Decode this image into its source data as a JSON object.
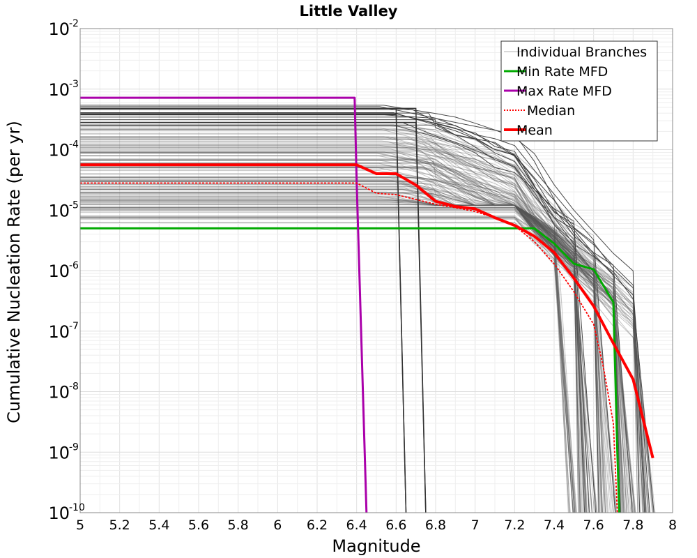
{
  "chart_data": {
    "type": "line",
    "title": "Little Valley",
    "xlabel": "Magnitude",
    "ylabel": "Cumulative Nucleation Rate (per yr)",
    "xlim": [
      5,
      8
    ],
    "ylim": [
      1e-10,
      0.01
    ],
    "yscale": "log",
    "grid": true,
    "legend_position": "top-right",
    "x_ticks": [
      "5",
      "5.2",
      "5.4",
      "5.6",
      "5.8",
      "6",
      "6.2",
      "6.4",
      "6.6",
      "6.8",
      "7",
      "7.2",
      "7.4",
      "7.6",
      "7.8",
      "8"
    ],
    "y_ticks": [
      {
        "base": "10",
        "exp": "-2"
      },
      {
        "base": "10",
        "exp": "-3"
      },
      {
        "base": "10",
        "exp": "-4"
      },
      {
        "base": "10",
        "exp": "-5"
      },
      {
        "base": "10",
        "exp": "-6"
      },
      {
        "base": "10",
        "exp": "-7"
      },
      {
        "base": "10",
        "exp": "-8"
      },
      {
        "base": "10",
        "exp": "-9"
      },
      {
        "base": "10",
        "exp": "-10"
      }
    ],
    "legend": [
      {
        "label": "Individual Branches",
        "color": "#b0b0b0",
        "style": "thin"
      },
      {
        "label": "Min Rate MFD",
        "color": "#00aa00",
        "style": "solid"
      },
      {
        "label": "Max Rate MFD",
        "color": "#aa00aa",
        "style": "solid"
      },
      {
        "label": "Median",
        "color": "#ff0000",
        "style": "dotted"
      },
      {
        "label": "Mean",
        "color": "#ff0000",
        "style": "thick"
      }
    ],
    "series": [
      {
        "name": "Min Rate MFD",
        "color": "#00aa00",
        "x": [
          5.0,
          6.4,
          6.5,
          6.6,
          6.7,
          6.8,
          6.9,
          7.0,
          7.1,
          7.2,
          7.3,
          7.4,
          7.5,
          7.6,
          7.7,
          7.72,
          7.73
        ],
        "y": [
          5e-06,
          5e-06,
          5e-06,
          5e-06,
          5e-06,
          5e-06,
          5e-06,
          5e-06,
          5e-06,
          5e-06,
          5e-06,
          2.8e-06,
          1.3e-06,
          1.05e-06,
          3e-07,
          1e-09,
          1e-10
        ]
      },
      {
        "name": "Max Rate MFD",
        "color": "#aa00aa",
        "x": [
          5.0,
          6.39,
          6.4,
          6.45
        ],
        "y": [
          0.00072,
          0.00072,
          3e-05,
          1e-10
        ]
      },
      {
        "name": "Median",
        "color": "#ff0000",
        "x": [
          5.0,
          6.4,
          6.5,
          6.6,
          6.7,
          6.8,
          6.9,
          7.0,
          7.1,
          7.2,
          7.3,
          7.4,
          7.5,
          7.6,
          7.65,
          7.7,
          7.72
        ],
        "y": [
          2.8e-05,
          2.8e-05,
          1.9e-05,
          1.8e-05,
          1.5e-05,
          1.25e-05,
          1.1e-05,
          9.5e-06,
          7.5e-06,
          5.5e-06,
          3e-06,
          1.3e-06,
          4.5e-07,
          1.3e-07,
          2.5e-08,
          3e-09,
          1e-10
        ]
      },
      {
        "name": "Mean",
        "color": "#ff0000",
        "x": [
          5.0,
          6.4,
          6.5,
          6.6,
          6.7,
          6.8,
          6.9,
          7.0,
          7.1,
          7.2,
          7.3,
          7.4,
          7.5,
          7.6,
          7.7,
          7.8,
          7.9
        ],
        "y": [
          5.6e-05,
          5.6e-05,
          4e-05,
          4e-05,
          2.6e-05,
          1.4e-05,
          1.15e-05,
          1.05e-05,
          7.5e-06,
          5.6e-06,
          3.7e-06,
          2e-06,
          7.5e-07,
          2.6e-07,
          6.3e-08,
          1.6e-08,
          8e-10
        ]
      }
    ],
    "branch_levels": [
      0.00048,
      0.00038,
      0.00028,
      0.00025,
      0.00022,
      0.0002,
      0.00018,
      0.00016,
      0.00014,
      0.00012,
      0.00011,
      0.0001,
      9e-05,
      8e-05,
      7e-05,
      6.5e-05,
      6e-05,
      5.5e-05,
      5e-05,
      4.5e-05,
      4e-05,
      3.6e-05,
      3.3e-05,
      3e-05,
      2.7e-05,
      2.5e-05,
      2.3e-05,
      2.1e-05,
      1.9e-05,
      1.7e-05,
      1.6e-05,
      1.5e-05,
      1.4e-05,
      1.3e-05,
      1.2e-05,
      1.1e-05,
      1e-05,
      9e-06,
      8e-06,
      7e-06
    ]
  }
}
